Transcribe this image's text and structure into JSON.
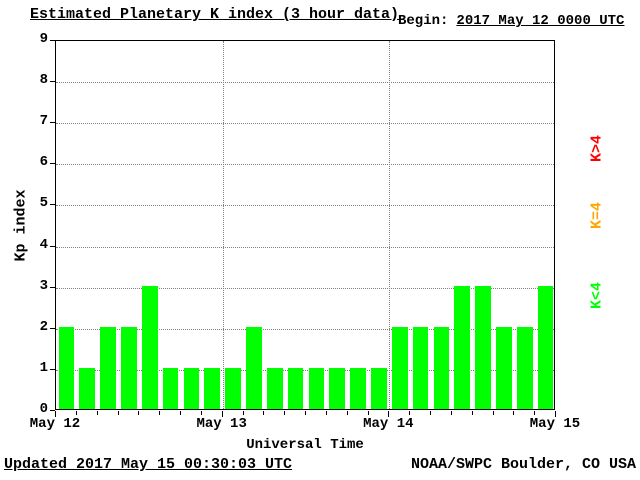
{
  "header": {
    "title": "Estimated Planetary K index (3 hour data)",
    "begin_label": "Begin:",
    "begin_value": "2017 May 12 0000 UTC"
  },
  "footer": {
    "updated": "Updated 2017 May 15 00:30:03 UTC",
    "credit": "NOAA/SWPC Boulder, CO USA"
  },
  "colors": {
    "bar_green": "#00ff00",
    "legend_red": "#ff0000",
    "legend_orange": "#ffa500",
    "legend_green": "#00ff00",
    "grid": "#808080",
    "text": "#000000"
  },
  "chart_data": {
    "type": "bar",
    "title": "Estimated Planetary K index (3 hour data)",
    "xlabel": "Universal Time",
    "ylabel": "Kp index",
    "ylim": [
      0,
      9
    ],
    "yticks": [
      0,
      1,
      2,
      3,
      4,
      5,
      6,
      7,
      8,
      9
    ],
    "xticks": [
      "May 12",
      "May 13",
      "May 14",
      "May 15"
    ],
    "bar_interval_hours": 3,
    "bars_per_day": 8,
    "values": [
      2,
      1,
      2,
      2,
      3,
      1,
      1,
      1,
      1,
      2,
      1,
      1,
      1,
      1,
      1,
      1,
      2,
      2,
      2,
      3,
      3,
      2,
      2,
      3
    ],
    "bar_color": "#00ff00",
    "grid": true,
    "legend_position": "right",
    "legend": [
      {
        "label": "K>4",
        "color": "#ff0000"
      },
      {
        "label": "K=4",
        "color": "#ffa500"
      },
      {
        "label": "K<4",
        "color": "#00ff00"
      }
    ]
  }
}
